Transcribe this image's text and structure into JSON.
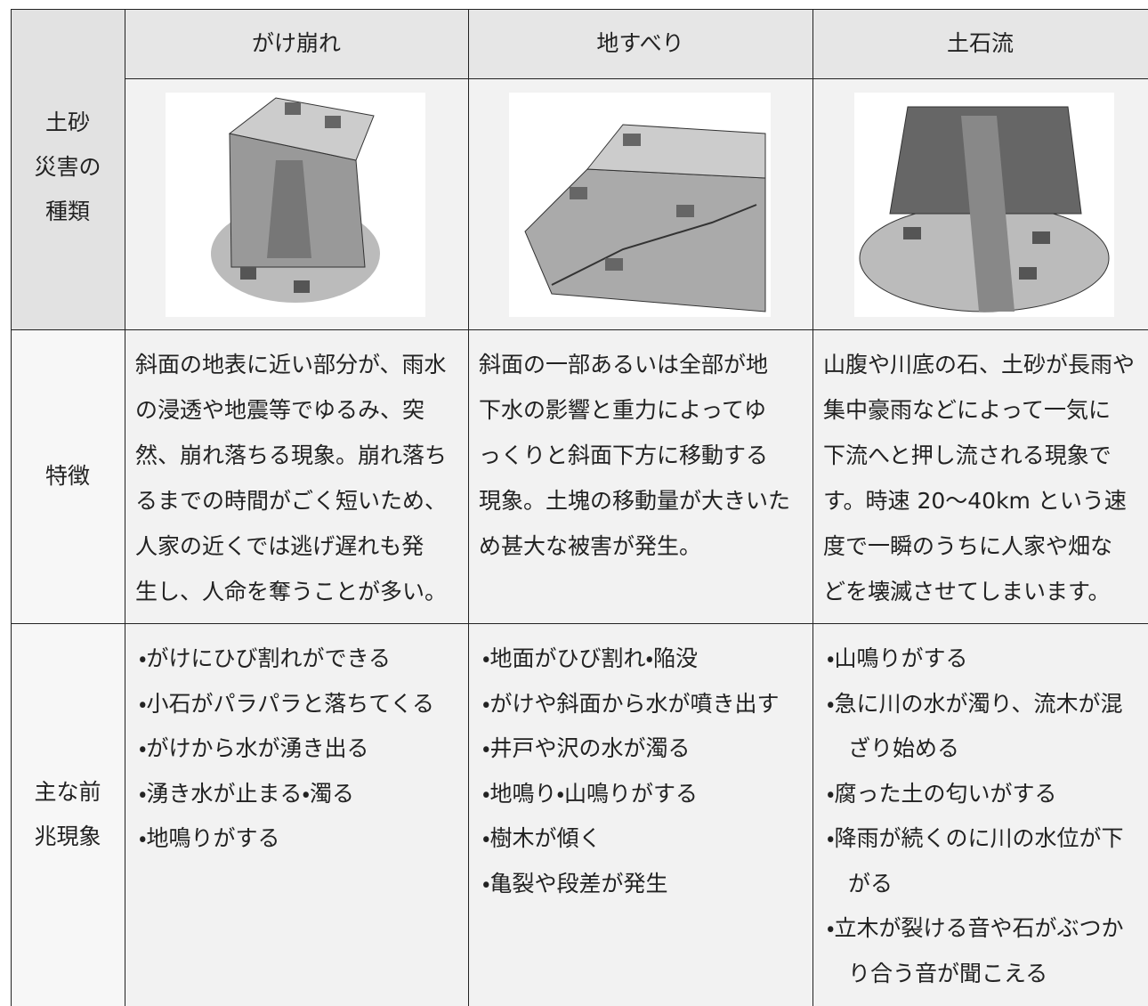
{
  "table": {
    "corner_label": [
      "土砂",
      "災害の",
      "種類"
    ],
    "columns": [
      "がけ崩れ",
      "地すべり",
      "土石流"
    ],
    "rows": [
      {
        "label": [
          "特徴"
        ],
        "cells": [
          [
            "斜面の地表に近い部分が、雨水",
            "の浸透や地震等でゆるみ、突",
            "然、崩れ落ちる現象。崩れ落ち",
            "るまでの時間がごく短いため、",
            "人家の近くでは逃げ遅れも発",
            "生し、人命を奪うことが多い。"
          ],
          [
            "斜面の一部あるいは全部が地",
            "下水の影響と重力によってゆ",
            "っくりと斜面下方に移動する",
            "現象。土塊の移動量が大きいた",
            "め甚大な被害が発生。"
          ],
          [
            "山腹や川底の石、土砂が長雨や",
            "集中豪雨などによって一気に",
            "下流へと押し流される現象で",
            "す。時速 20～40km という速",
            "度で一瞬のうちに人家や畑な",
            "どを壊滅させてしまいます。"
          ]
        ]
      },
      {
        "label": [
          "主な前",
          "兆現象"
        ],
        "cells": [
          [
            [
              "・がけにひび割れができる"
            ],
            [
              "・小石がパラパラと落ちてくる"
            ],
            [
              "・がけから水が湧き出る"
            ],
            [
              "・湧き水が止まる・濁る"
            ],
            [
              "・地鳴りがする"
            ]
          ],
          [
            [
              "・地面がひび割れ・陥没"
            ],
            [
              "・がけや斜面から水が噴き出す"
            ],
            [
              "・井戸や沢の水が濁る"
            ],
            [
              "・地鳴り・山鳴りがする"
            ],
            [
              "・樹木が傾く"
            ],
            [
              "・亀裂や段差が発生"
            ]
          ],
          [
            [
              "・山鳴りがする"
            ],
            [
              "・急に川の水が濁り、流木が混",
              "ざり始める"
            ],
            [
              "・腐った土の匂いがする"
            ],
            [
              "・降雨が続くのに川の水位が下",
              "がる"
            ],
            [
              "・立木が裂ける音や石がぶつか",
              "り合う音が聞こえる"
            ]
          ]
        ]
      }
    ]
  }
}
